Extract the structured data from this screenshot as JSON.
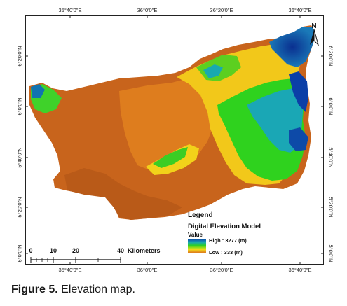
{
  "map": {
    "top_ticks": [
      "35°40'0\"E",
      "36°0'0\"E",
      "36°20'0\"E",
      "36°40'0\"E"
    ],
    "bottom_ticks": [
      "35°40'0\"E",
      "36°0'0\"E",
      "36°20'0\"E",
      "36°40'0\"E"
    ],
    "left_ticks": [
      "6°20'0\"N",
      "6°0'0\"N",
      "5°40'0\"N",
      "5°20'0\"N",
      "5°0'0\"N"
    ],
    "right_ticks": [
      "6°20'0\"N",
      "6°0'0\"N",
      "5°40'0\"N",
      "5°20'0\"N",
      "5°0'0\"N"
    ],
    "north_label": "N",
    "colors": {
      "high": "#0b3fa7",
      "upper": "#1aa7b5",
      "mid": "#2fd21e",
      "lower": "#f2e21a",
      "low": "#de7a1d",
      "lowest": "#c8641c"
    }
  },
  "legend": {
    "title": "Legend",
    "subtitle": "Digital Elevation Model",
    "value_label": "Value",
    "high": "High : 3277 (m)",
    "low": "Low : 333 (m)"
  },
  "scalebar": {
    "ticks": [
      "0",
      "10",
      "20",
      "40"
    ],
    "units": "Kilometers"
  },
  "caption": {
    "label": "Figure 5.",
    "text": "Elevation map."
  }
}
